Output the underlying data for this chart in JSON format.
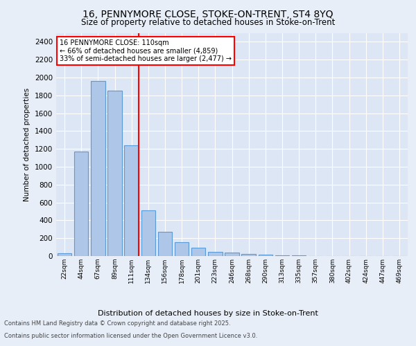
{
  "title_line1": "16, PENNYMORE CLOSE, STOKE-ON-TRENT, ST4 8YQ",
  "title_line2": "Size of property relative to detached houses in Stoke-on-Trent",
  "xlabel": "Distribution of detached houses by size in Stoke-on-Trent",
  "ylabel": "Number of detached properties",
  "categories": [
    "22sqm",
    "44sqm",
    "67sqm",
    "89sqm",
    "111sqm",
    "134sqm",
    "156sqm",
    "178sqm",
    "201sqm",
    "223sqm",
    "246sqm",
    "268sqm",
    "290sqm",
    "313sqm",
    "335sqm",
    "357sqm",
    "380sqm",
    "402sqm",
    "424sqm",
    "447sqm",
    "469sqm"
  ],
  "values": [
    30,
    1170,
    1960,
    1850,
    1240,
    510,
    270,
    155,
    90,
    50,
    40,
    25,
    15,
    10,
    5,
    3,
    2,
    2,
    1,
    1,
    1
  ],
  "bar_color": "#aec6e8",
  "bar_edge_color": "#5b9bd5",
  "redline_index": 4,
  "annotation_line1": "16 PENNYMORE CLOSE: 110sqm",
  "annotation_line2": "← 66% of detached houses are smaller (4,859)",
  "annotation_line3": "33% of semi-detached houses are larger (2,477) →",
  "ylim": [
    0,
    2500
  ],
  "yticks": [
    0,
    200,
    400,
    600,
    800,
    1000,
    1200,
    1400,
    1600,
    1800,
    2000,
    2200,
    2400
  ],
  "background_color": "#e8eef7",
  "plot_bg_color": "#dce6f5",
  "footnote_line1": "Contains HM Land Registry data © Crown copyright and database right 2025.",
  "footnote_line2": "Contains public sector information licensed under the Open Government Licence v3.0."
}
